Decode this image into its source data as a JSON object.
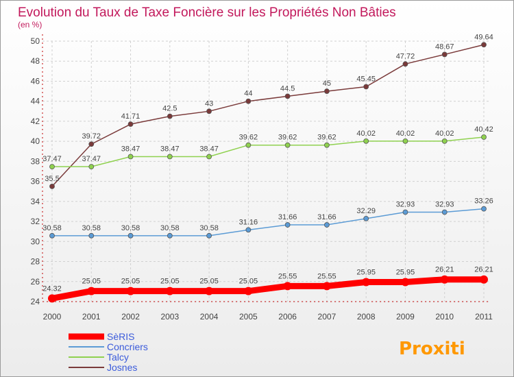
{
  "chart_data": {
    "type": "line",
    "title": "Evolution du Taux de Taxe Foncière sur les Propriétés Non Bâties",
    "subtitle": "(en %)",
    "x": [
      "2000",
      "2001",
      "2002",
      "2003",
      "2004",
      "2005",
      "2006",
      "2007",
      "2008",
      "2009",
      "2010",
      "2011"
    ],
    "ylim": [
      24,
      50
    ],
    "yticks": [
      "24",
      "26",
      "28",
      "30",
      "32",
      "34",
      "36",
      "38",
      "40",
      "42",
      "44",
      "46",
      "48",
      "50"
    ],
    "grid": true,
    "legend_position": "bottom-left",
    "series": [
      {
        "name": "SèRIS",
        "color": "#ff0000",
        "values": [
          24.32,
          25.05,
          25.05,
          25.05,
          25.05,
          25.05,
          25.55,
          25.55,
          25.95,
          25.95,
          26.21,
          26.21
        ],
        "labels": [
          "24.32",
          "25.05",
          "25.05",
          "25.05",
          "25.05",
          "25.05",
          "25.55",
          "25.55",
          "25.95",
          "25.95",
          "26.21",
          "26.21"
        ]
      },
      {
        "name": "Concriers",
        "color": "#5b9bd5",
        "values": [
          30.58,
          30.58,
          30.58,
          30.58,
          30.58,
          31.16,
          31.66,
          31.66,
          32.29,
          32.93,
          32.93,
          33.26
        ],
        "labels": [
          "30.58",
          "30.58",
          "30.58",
          "30.58",
          "30.58",
          "31.16",
          "31.66",
          "31.66",
          "32.29",
          "32.93",
          "32.93",
          "33.26"
        ]
      },
      {
        "name": "Talcy",
        "color": "#8fd14f",
        "values": [
          37.47,
          37.47,
          38.47,
          38.47,
          38.47,
          39.62,
          39.62,
          39.62,
          40.02,
          40.02,
          40.02,
          40.42
        ],
        "labels": [
          "37.47",
          "37.47",
          "38.47",
          "38.47",
          "38.47",
          "39.62",
          "39.62",
          "39.62",
          "40.02",
          "40.02",
          "40.02",
          "40.42"
        ]
      },
      {
        "name": "Josnes",
        "color": "#7a3a3a",
        "values": [
          35.5,
          39.72,
          41.71,
          42.5,
          43,
          44,
          44.5,
          45,
          45.45,
          47.72,
          48.67,
          49.64
        ],
        "labels": [
          "35.5",
          "39.72",
          "41.71",
          "42.5",
          "43",
          "44",
          "44.5",
          "45",
          "45.45",
          "47.72",
          "48.67",
          "49.64"
        ]
      }
    ]
  },
  "logo": {
    "text": "Proxiti"
  }
}
